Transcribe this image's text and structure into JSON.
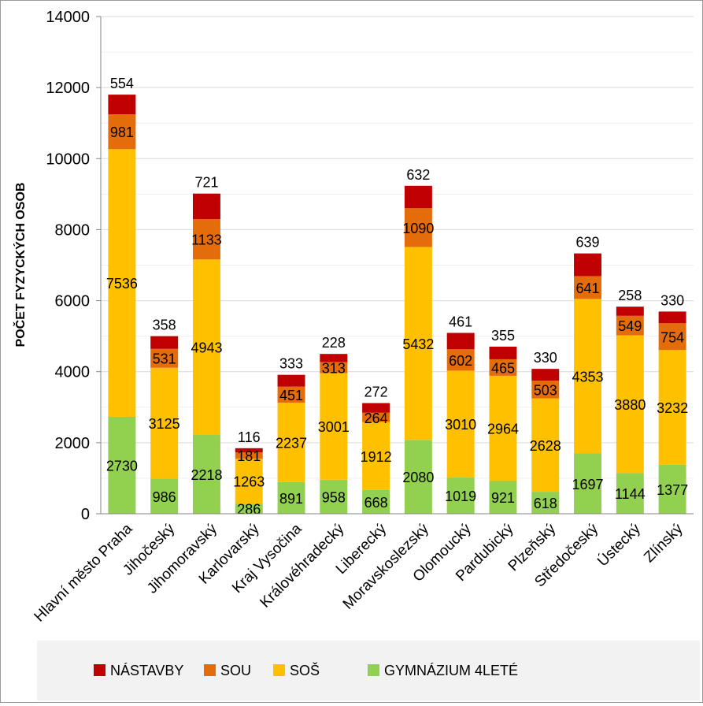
{
  "chart_data": {
    "type": "bar",
    "stacked": true,
    "ylabel": "POČET FYZYCKÝCH OSOB",
    "xlabel": "",
    "ylim": [
      0,
      14000
    ],
    "yticks": [
      0,
      2000,
      4000,
      6000,
      8000,
      10000,
      12000,
      14000
    ],
    "grid": true,
    "legend_position": "bottom",
    "categories": [
      "Hlavní město Praha",
      "Jihočeský",
      "Jihomoravský",
      "Karlovarský",
      "Kraj Vysočina",
      "Královéhradecký",
      "Liberecký",
      "Moravskoslezský",
      "Olomoucký",
      "Pardubický",
      "Plzeňský",
      "Středočeský",
      "Ústecký",
      "Zlínský"
    ],
    "series": [
      {
        "name": "GYMNÁZIUM 4LETÉ",
        "color": "#92d050",
        "values": [
          2730,
          986,
          2218,
          286,
          891,
          958,
          668,
          2080,
          1019,
          921,
          618,
          1697,
          1144,
          1377
        ]
      },
      {
        "name": "SOŠ",
        "color": "#ffc000",
        "values": [
          7536,
          3125,
          4943,
          1263,
          2237,
          3001,
          1912,
          5432,
          3010,
          2964,
          2628,
          4353,
          3880,
          3232
        ]
      },
      {
        "name": "SOU",
        "color": "#e46c0a",
        "values": [
          981,
          531,
          1133,
          181,
          451,
          313,
          264,
          1090,
          602,
          465,
          503,
          641,
          549,
          754
        ]
      },
      {
        "name": "NÁSTAVBY",
        "color": "#c00000",
        "values": [
          554,
          358,
          721,
          116,
          333,
          228,
          272,
          632,
          461,
          355,
          330,
          639,
          258,
          330
        ]
      }
    ],
    "legend_order": [
      "NÁSTAVBY",
      "SOU",
      "SOŠ",
      "GYMNÁZIUM 4LETÉ"
    ]
  }
}
